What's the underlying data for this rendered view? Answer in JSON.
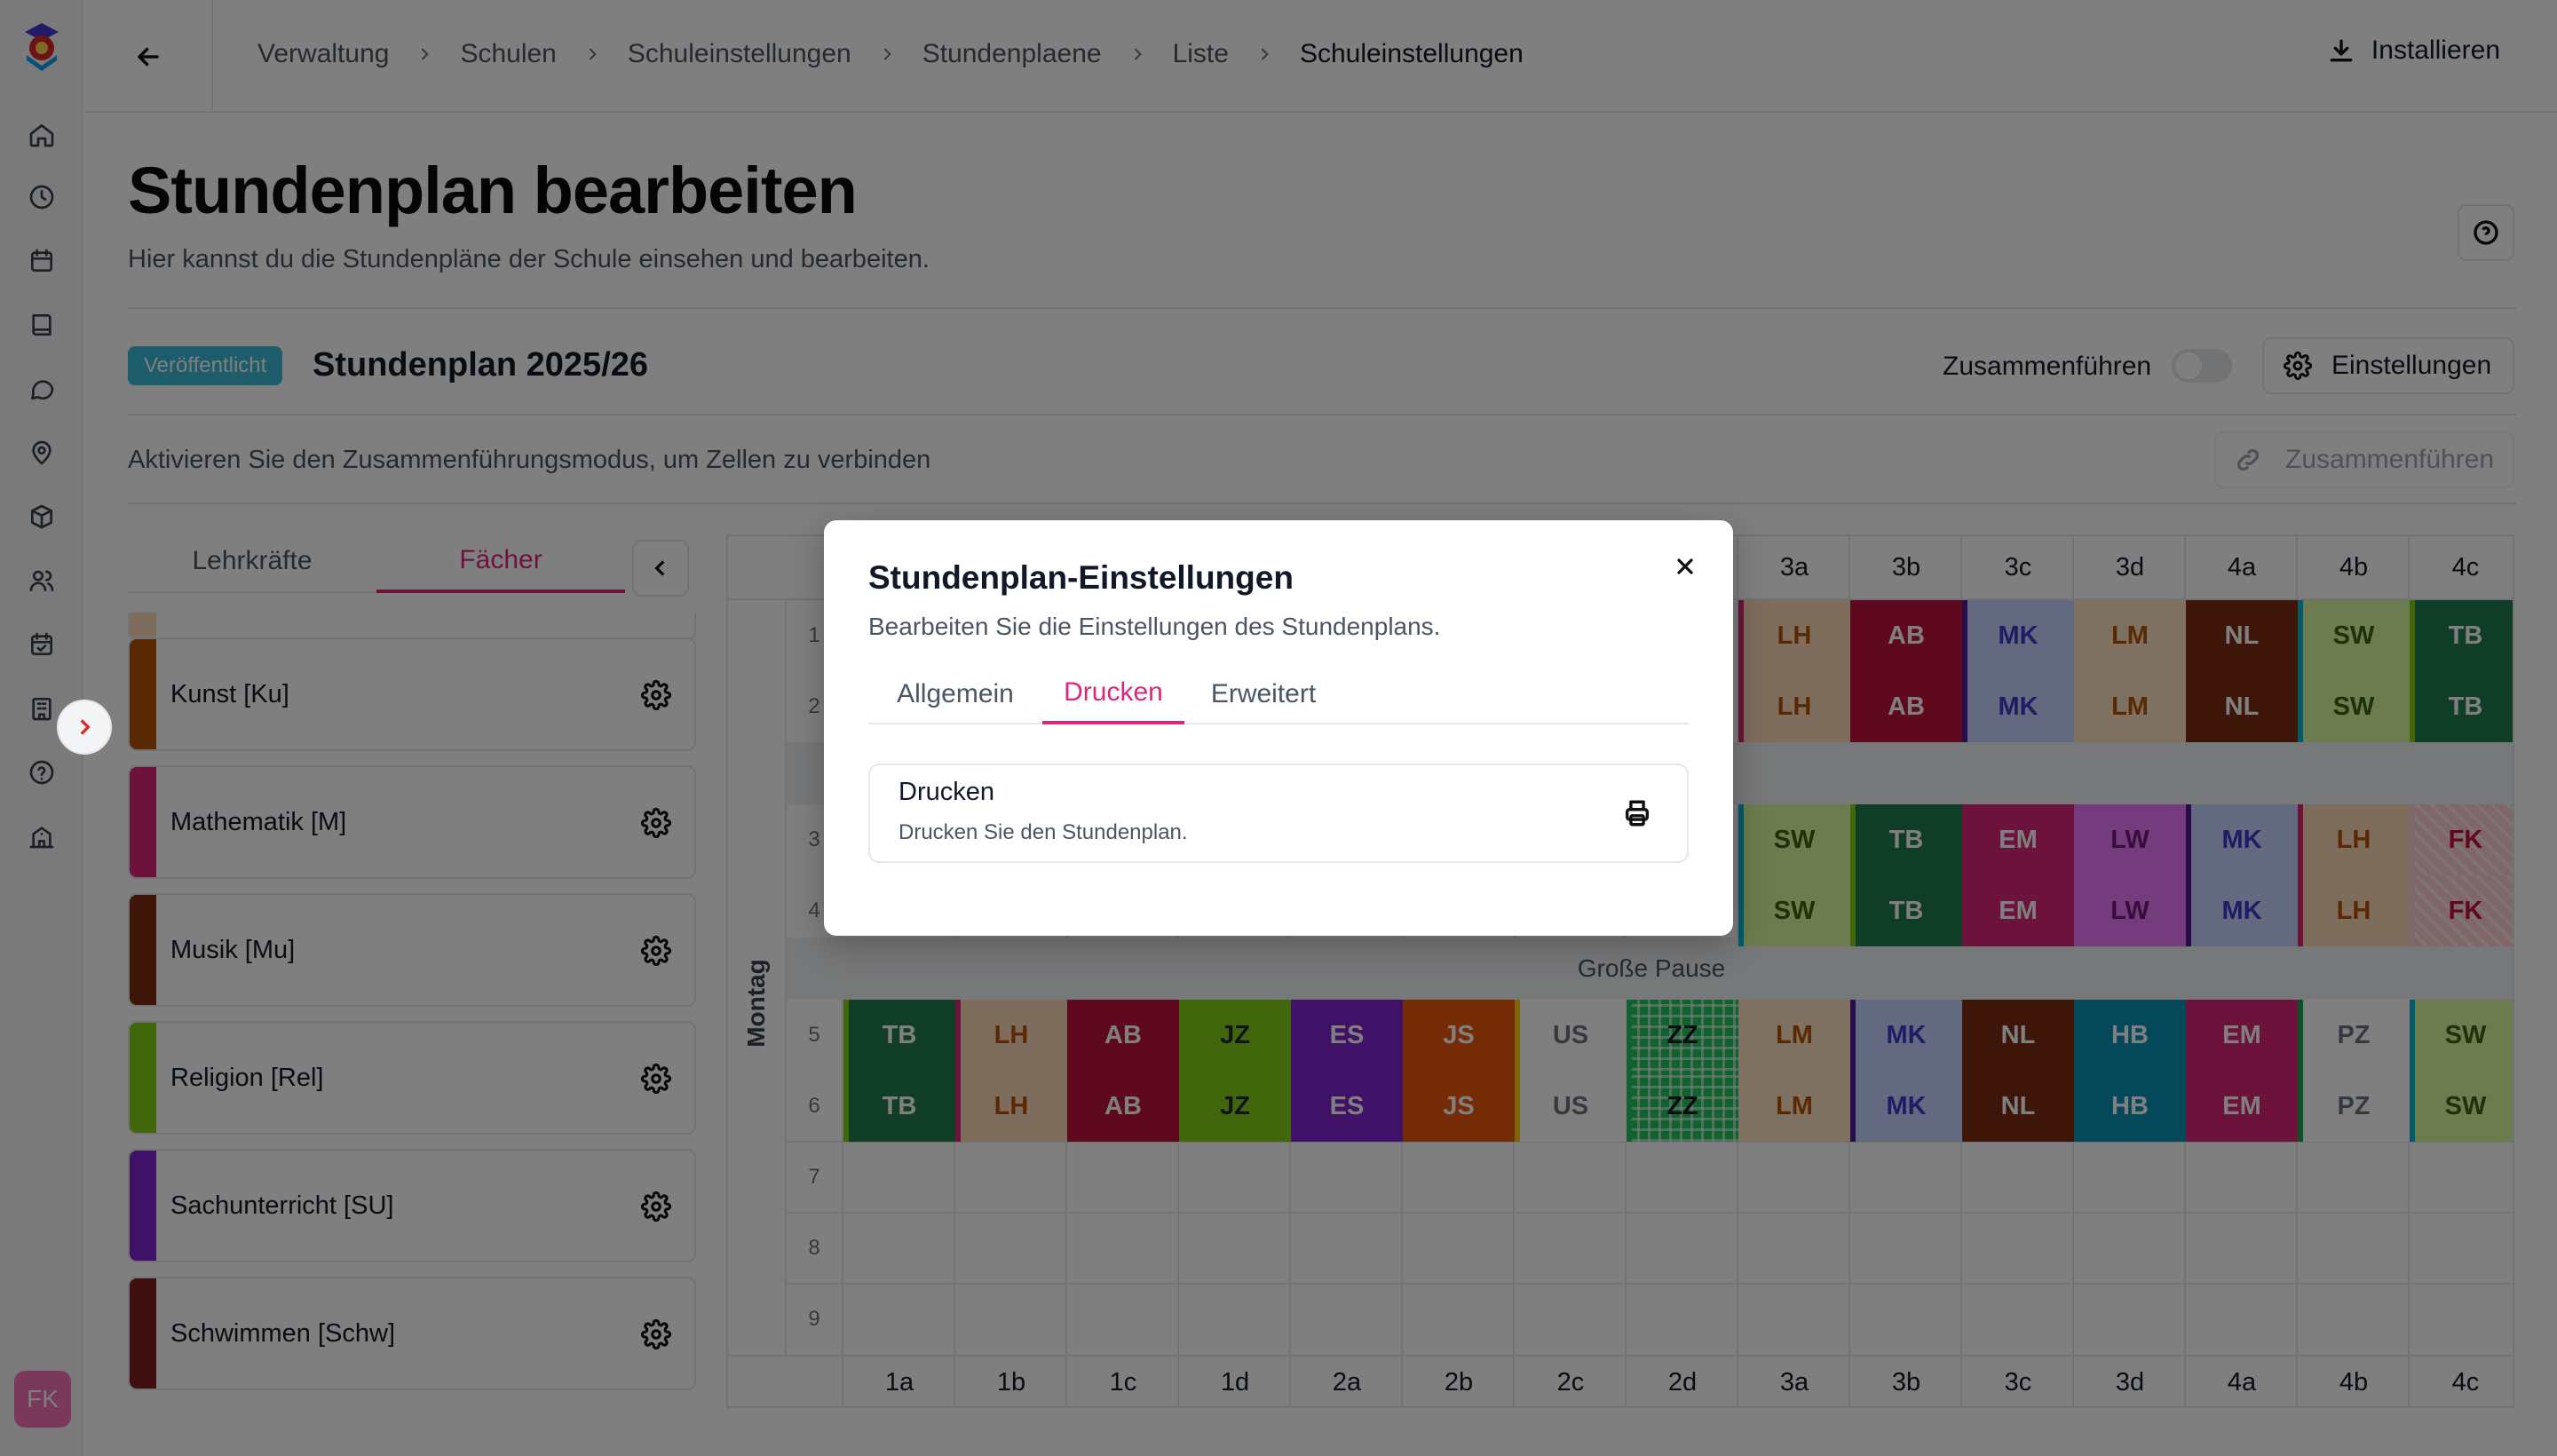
{
  "breadcrumb": {
    "items": [
      "Verwaltung",
      "Schulen",
      "Schuleinstellungen",
      "Stundenplaene",
      "Liste"
    ],
    "current": "Schuleinstellungen"
  },
  "topbar": {
    "install_label": "Installieren"
  },
  "header": {
    "title": "Stundenplan bearbeiten",
    "subtitle": "Hier kannst du die Stundenpläne der Schule einsehen und bearbeiten."
  },
  "plan": {
    "status": "Veröffentlicht",
    "name": "Stundenplan 2025/26",
    "merge_toggle_label": "Zusammenführen",
    "settings_label": "Einstellungen",
    "merge_hint": "Aktivieren Sie den Zusammenführungsmodus, um Zellen zu verbinden",
    "merge_button_label": "Zusammenführen"
  },
  "user": {
    "initials": "FK"
  },
  "panel": {
    "tabs": [
      "Lehrkräfte",
      "Fächer"
    ],
    "active_tab": "Fächer",
    "subjects": [
      {
        "name": "Kunst [Ku]",
        "color": "#b45309"
      },
      {
        "name": "Mathematik [M]",
        "color": "#db2777"
      },
      {
        "name": "Musik [Mu]",
        "color": "#7c2d12"
      },
      {
        "name": "Religion [Rel]",
        "color": "#84cc16"
      },
      {
        "name": "Sachunterricht [SU]",
        "color": "#7e22ce"
      },
      {
        "name": "Schwimmen [Schw]",
        "color": "#7f1d1d"
      }
    ]
  },
  "timetable": {
    "day": "Montag",
    "classes": [
      "1a",
      "1b",
      "1c",
      "1d",
      "2a",
      "2b",
      "2c",
      "2d",
      "3a",
      "3b",
      "3c",
      "3d",
      "4a",
      "4b",
      "4c"
    ],
    "break_label": "Große Pause",
    "periods": [
      "1",
      "2",
      "3",
      "4",
      "5",
      "6",
      "7",
      "8",
      "9"
    ],
    "rows": {
      "1": [
        "",
        "",
        "",
        "",
        "",
        "",
        "",
        "",
        "LH",
        "AB",
        "MK",
        "LM",
        "NL",
        "SW",
        "TB"
      ],
      "2": [
        "",
        "",
        "",
        "",
        "",
        "",
        "",
        "",
        "LH",
        "AB",
        "MK",
        "LM",
        "NL",
        "SW",
        "TB"
      ],
      "3": [
        "",
        "",
        "",
        "",
        "",
        "",
        "",
        "",
        "SW",
        "TB",
        "EM",
        "LW",
        "MK",
        "LH",
        "FK"
      ],
      "4": [
        "",
        "",
        "",
        "",
        "",
        "",
        "",
        "",
        "SW",
        "TB",
        "EM",
        "LW",
        "MK",
        "LH",
        "FK"
      ],
      "5": [
        "TB",
        "LH",
        "AB",
        "JZ",
        "ES",
        "JS",
        "US",
        "ZZ",
        "LM",
        "MK",
        "NL",
        "HB",
        "EM",
        "PZ",
        "SW"
      ],
      "6": [
        "TB",
        "LH",
        "AB",
        "JZ",
        "ES",
        "JS",
        "US",
        "ZZ",
        "LM",
        "MK",
        "NL",
        "HB",
        "EM",
        "PZ",
        "SW"
      ]
    },
    "teacher_colors": {
      "TB": {
        "bg": "#1f7a4d",
        "fg": "#ffffff",
        "bar": "#84cc16"
      },
      "LH": {
        "bg": "#fcd9b8",
        "fg": "#b45309",
        "bar": "#db2777"
      },
      "AB": {
        "bg": "#be123c",
        "fg": "#ffffff",
        "bar": "#be123c"
      },
      "JZ": {
        "bg": "#84cc16",
        "fg": "#1f2937",
        "bar": "#84cc16"
      },
      "ES": {
        "bg": "#7e22ce",
        "fg": "#ffffff",
        "bar": "#7e22ce"
      },
      "JS": {
        "bg": "#ea580c",
        "fg": "#ffffff",
        "bar": "#ea580c"
      },
      "US": {
        "bg": "#ffffff",
        "fg": "#6b7280",
        "bar": "#facc15"
      },
      "ZZ": {
        "bg": "#22c55e",
        "fg": "#111827",
        "bar": "#22c55e"
      },
      "LM": {
        "bg": "#fde2c4",
        "fg": "#b45309",
        "bar": "#fde2c4"
      },
      "MK": {
        "bg": "#c7d2fe",
        "fg": "#4338ca",
        "bar": "#4c1d95"
      },
      "NL": {
        "bg": "#7c2d12",
        "fg": "#ffffff",
        "bar": "#7c2d12"
      },
      "HB": {
        "bg": "#0891b2",
        "fg": "#ffffff",
        "bar": "#0891b2"
      },
      "EM": {
        "bg": "#db2777",
        "fg": "#ffffff",
        "bar": "#db2777"
      },
      "PZ": {
        "bg": "#ffffff",
        "fg": "#6b7280",
        "bar": "#16a34a"
      },
      "SW": {
        "bg": "#d9f99d",
        "fg": "#3f6212",
        "bar": "#06b6d4"
      },
      "LW": {
        "bg": "#e879f9",
        "fg": "#701a75",
        "bar": "#e879f9"
      },
      "FK": {
        "bg": "#fecdd3",
        "fg": "#be123c",
        "bar": "#fecdd3"
      }
    }
  },
  "modal": {
    "title": "Stundenplan-Einstellungen",
    "description": "Bearbeiten Sie die Einstellungen des Stundenplans.",
    "tabs": [
      "Allgemein",
      "Drucken",
      "Erweitert"
    ],
    "active_tab": "Drucken",
    "print_card": {
      "title": "Drucken",
      "description": "Drucken Sie den Stundenplan."
    }
  }
}
